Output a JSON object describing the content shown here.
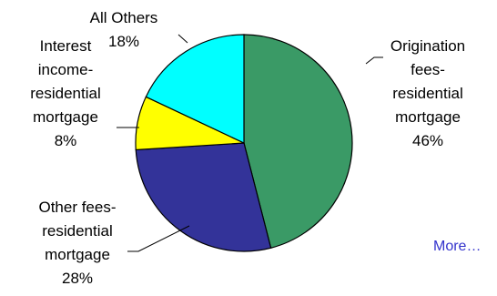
{
  "chart_data": {
    "type": "pie",
    "title": "",
    "slices": [
      {
        "lines": [
          "Origination",
          "fees-",
          "residential",
          "mortgage"
        ],
        "value": 46,
        "value_label": "46%",
        "color": "#3a9a66"
      },
      {
        "lines": [
          "Other fees-",
          "residential",
          "mortgage"
        ],
        "value": 28,
        "value_label": "28%",
        "color": "#333399"
      },
      {
        "lines": [
          "Interest",
          "income-",
          "residential",
          "mortgage"
        ],
        "value": 8,
        "value_label": "8%",
        "color": "#ffff00"
      },
      {
        "lines": [
          "All Others"
        ],
        "value": 18,
        "value_label": "18%",
        "color": "#00ffff"
      }
    ]
  },
  "more_link": {
    "label": "More…"
  }
}
